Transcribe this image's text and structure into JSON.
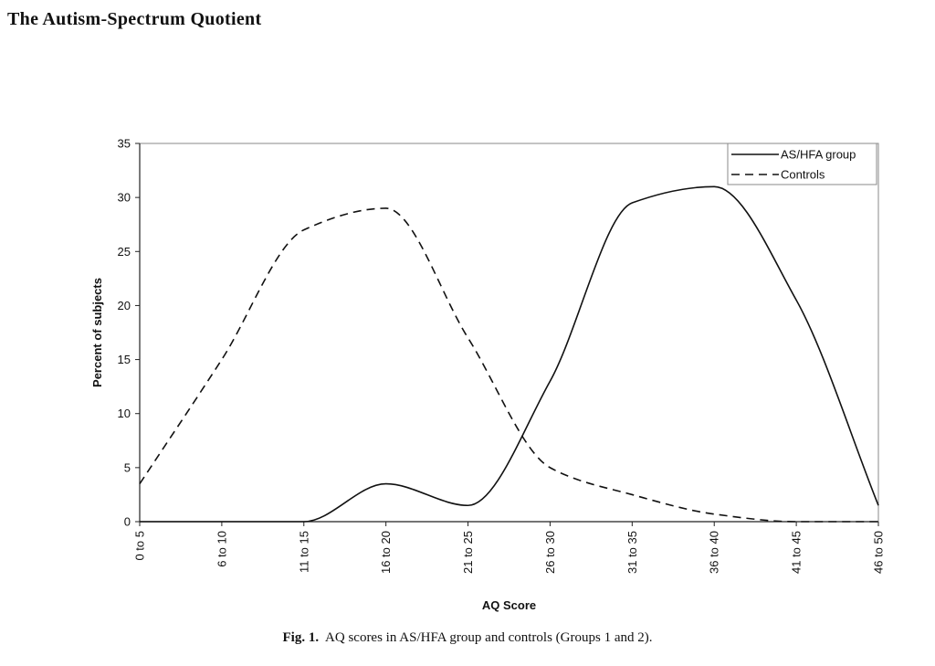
{
  "header": {
    "running_head": "The Autism-Spectrum Quotient"
  },
  "figure": {
    "label": "Fig. 1.",
    "caption": "AQ scores in AS/HFA group and controls (Groups 1 and 2)."
  },
  "chart_data": {
    "type": "line",
    "title": "",
    "xlabel": "AQ Score",
    "ylabel": "Percent of subjects",
    "categories": [
      "0 to 5",
      "6 to 10",
      "11 to 15",
      "16 to 20",
      "21 to 25",
      "26 to 30",
      "31 to 35",
      "36 to 40",
      "41 to 45",
      "46 to 50"
    ],
    "ylim": [
      0,
      35
    ],
    "yticks": [
      0,
      5,
      10,
      15,
      20,
      25,
      30,
      35
    ],
    "grid": false,
    "legend_position": "top-right",
    "series": [
      {
        "name": "AS/HFA group",
        "style": "solid",
        "values": [
          0,
          0,
          0,
          3.5,
          1.5,
          13,
          29.5,
          31,
          20.5,
          1.5
        ]
      },
      {
        "name": "Controls",
        "style": "dashed",
        "values": [
          3.5,
          15,
          27,
          29,
          17,
          5,
          2.5,
          0.7,
          0,
          0
        ]
      }
    ],
    "colors": {
      "line": "#111111",
      "axis": "#222222"
    }
  }
}
